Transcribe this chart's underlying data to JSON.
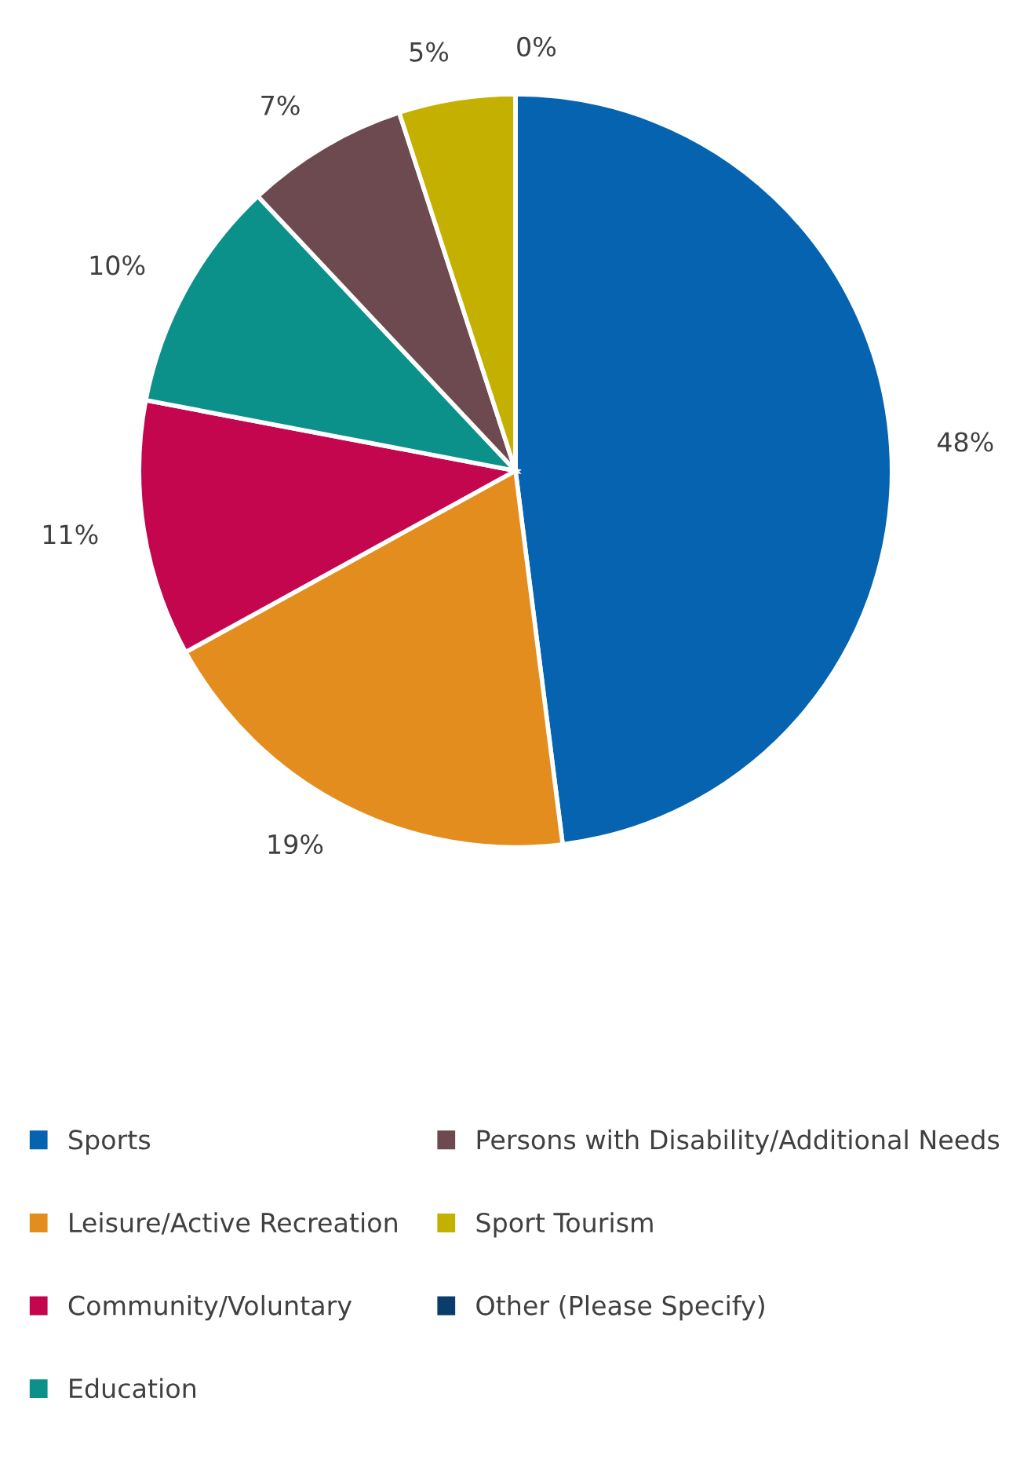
{
  "chart_data": {
    "type": "pie",
    "categories": [
      "Sports",
      "Leisure/Active Recreation",
      "Community/Voluntary",
      "Education",
      "Persons with Disability/Additional Needs",
      "Sport Tourism",
      "Other (Please Specify)"
    ],
    "values": [
      48,
      19,
      11,
      10,
      7,
      5,
      0
    ],
    "value_labels": [
      "48%",
      "19%",
      "11%",
      "10%",
      "7%",
      "5%",
      "0%"
    ],
    "colors": [
      "#0563b0",
      "#e38d1e",
      "#c3064d",
      "#0b918a",
      "#6d4a4f",
      "#c4b000",
      "#0b3d6b"
    ],
    "legend": "bottom"
  }
}
